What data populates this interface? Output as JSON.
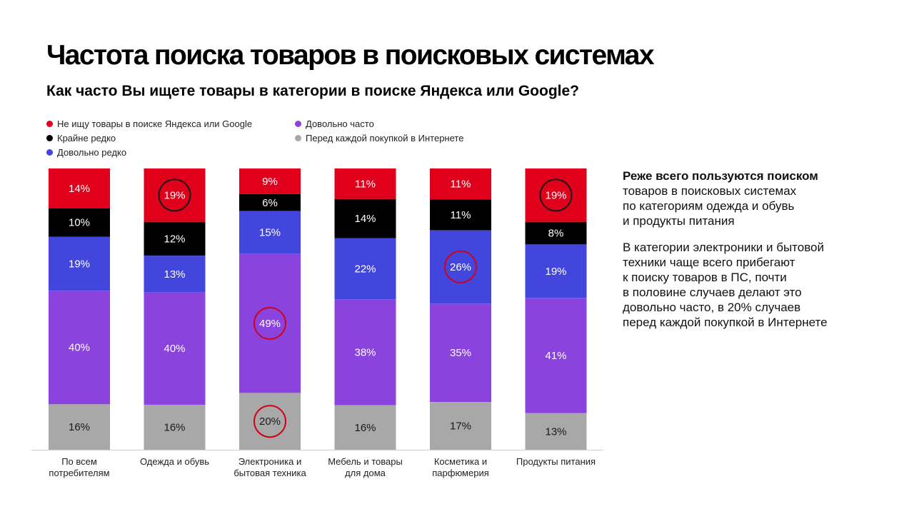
{
  "title": "Частота поиска товаров в поисковых системах",
  "subtitle": "Как часто Вы ищете товары в категории в поиске Яндекса или Google?",
  "legend": [
    {
      "label": "Не ищу товары в поиске Яндекса или Google",
      "color": "#e0001b"
    },
    {
      "label": "Крайне редко",
      "color": "#000000"
    },
    {
      "label": "Довольно редко",
      "color": "#4346dc"
    },
    {
      "label": "Довольно часто",
      "color": "#8a44dd"
    },
    {
      "label": "Перед каждой покупкой в Интернете",
      "color": "#a8a8a8"
    }
  ],
  "chart_data": {
    "type": "bar",
    "stacked": true,
    "categories": [
      [
        "По всем",
        "потребителям"
      ],
      [
        "Одежда и обувь"
      ],
      [
        "Электроника и",
        "бытовая техника"
      ],
      [
        "Мебель и товары",
        "для дома"
      ],
      [
        "Косметика и",
        "парфюмерия"
      ],
      [
        "Продукты питания"
      ]
    ],
    "unit": "%",
    "series": [
      {
        "name": "Не ищу товары в поиске Яндекса или Google",
        "color": "#e0001b",
        "values": [
          14,
          19,
          9,
          11,
          11,
          19
        ],
        "highlight": [
          false,
          true,
          false,
          false,
          false,
          true
        ]
      },
      {
        "name": "Крайне редко",
        "color": "#000000",
        "values": [
          10,
          12,
          6,
          14,
          11,
          8
        ],
        "highlight": [
          false,
          false,
          false,
          false,
          false,
          false
        ]
      },
      {
        "name": "Довольно редко",
        "color": "#4346dc",
        "values": [
          19,
          13,
          15,
          22,
          26,
          19
        ],
        "highlight": [
          false,
          false,
          false,
          false,
          true,
          false
        ]
      },
      {
        "name": "Довольно часто",
        "color": "#8a44dd",
        "values": [
          40,
          40,
          49,
          38,
          35,
          41
        ],
        "highlight": [
          false,
          false,
          true,
          false,
          false,
          false
        ]
      },
      {
        "name": "Перед каждой покупкой в Интернете",
        "color": "#a8a8a8",
        "values": [
          16,
          16,
          20,
          16,
          17,
          13
        ],
        "highlight": [
          false,
          false,
          true,
          false,
          false,
          false
        ]
      }
    ],
    "highlight_color": "#d0021b",
    "ylim": [
      0,
      100
    ],
    "grid": false,
    "legend_position": "top-left"
  },
  "side_panel": {
    "lead_bold": "Реже всего пользуются поиском",
    "lead_rest": [
      "товаров в поисковых системах",
      "по категориям одежда и обувь",
      "и продукты питания"
    ],
    "paragraph": [
      "В категории электроники и бытовой",
      "техники чаще всего прибегают",
      "к поиску товаров в ПС, почти",
      "в половине случаев делают это",
      "довольно часто, в 20% случаев",
      "перед каждой покупкой в Интернете"
    ]
  }
}
